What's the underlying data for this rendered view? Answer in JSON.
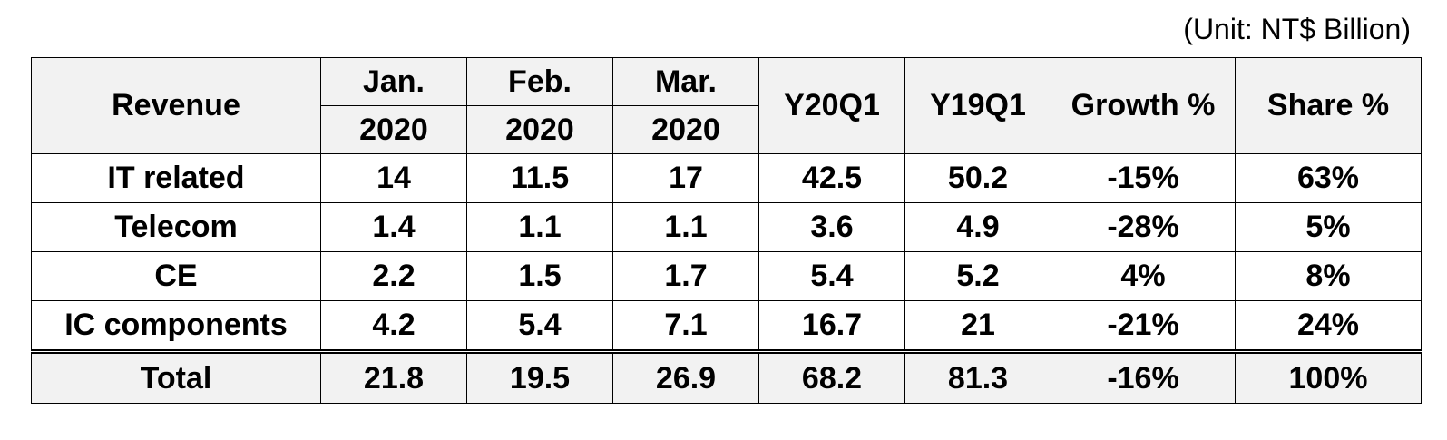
{
  "unit_label": "(Unit: NT$ Billion)",
  "chart_data": {
    "type": "table",
    "unit": "(Unit: NT$ Billion)",
    "header": {
      "row_label": "Revenue",
      "months": [
        {
          "month": "Jan.",
          "year": "2020"
        },
        {
          "month": "Feb.",
          "year": "2020"
        },
        {
          "month": "Mar.",
          "year": "2020"
        }
      ],
      "quarter_current": "Y20Q1",
      "quarter_previous": "Y19Q1",
      "growth": "Growth %",
      "share": "Share %"
    },
    "rows": [
      {
        "label": "IT related",
        "cells": [
          "14",
          "11.5",
          "17",
          "42.5",
          "50.2",
          "-15%",
          "63%"
        ]
      },
      {
        "label": "Telecom",
        "cells": [
          "1.4",
          "1.1",
          "1.1",
          "3.6",
          "4.9",
          "-28%",
          "5%"
        ]
      },
      {
        "label": "CE",
        "cells": [
          "2.2",
          "1.5",
          "1.7",
          "5.4",
          "5.2",
          "4%",
          "8%"
        ]
      },
      {
        "label": "IC components",
        "cells": [
          "4.2",
          "5.4",
          "7.1",
          "16.7",
          "21",
          "-21%",
          "24%"
        ]
      }
    ],
    "total": {
      "label": "Total",
      "cells": [
        "21.8",
        "19.5",
        "26.9",
        "68.2",
        "81.3",
        "-16%",
        "100%"
      ]
    }
  }
}
